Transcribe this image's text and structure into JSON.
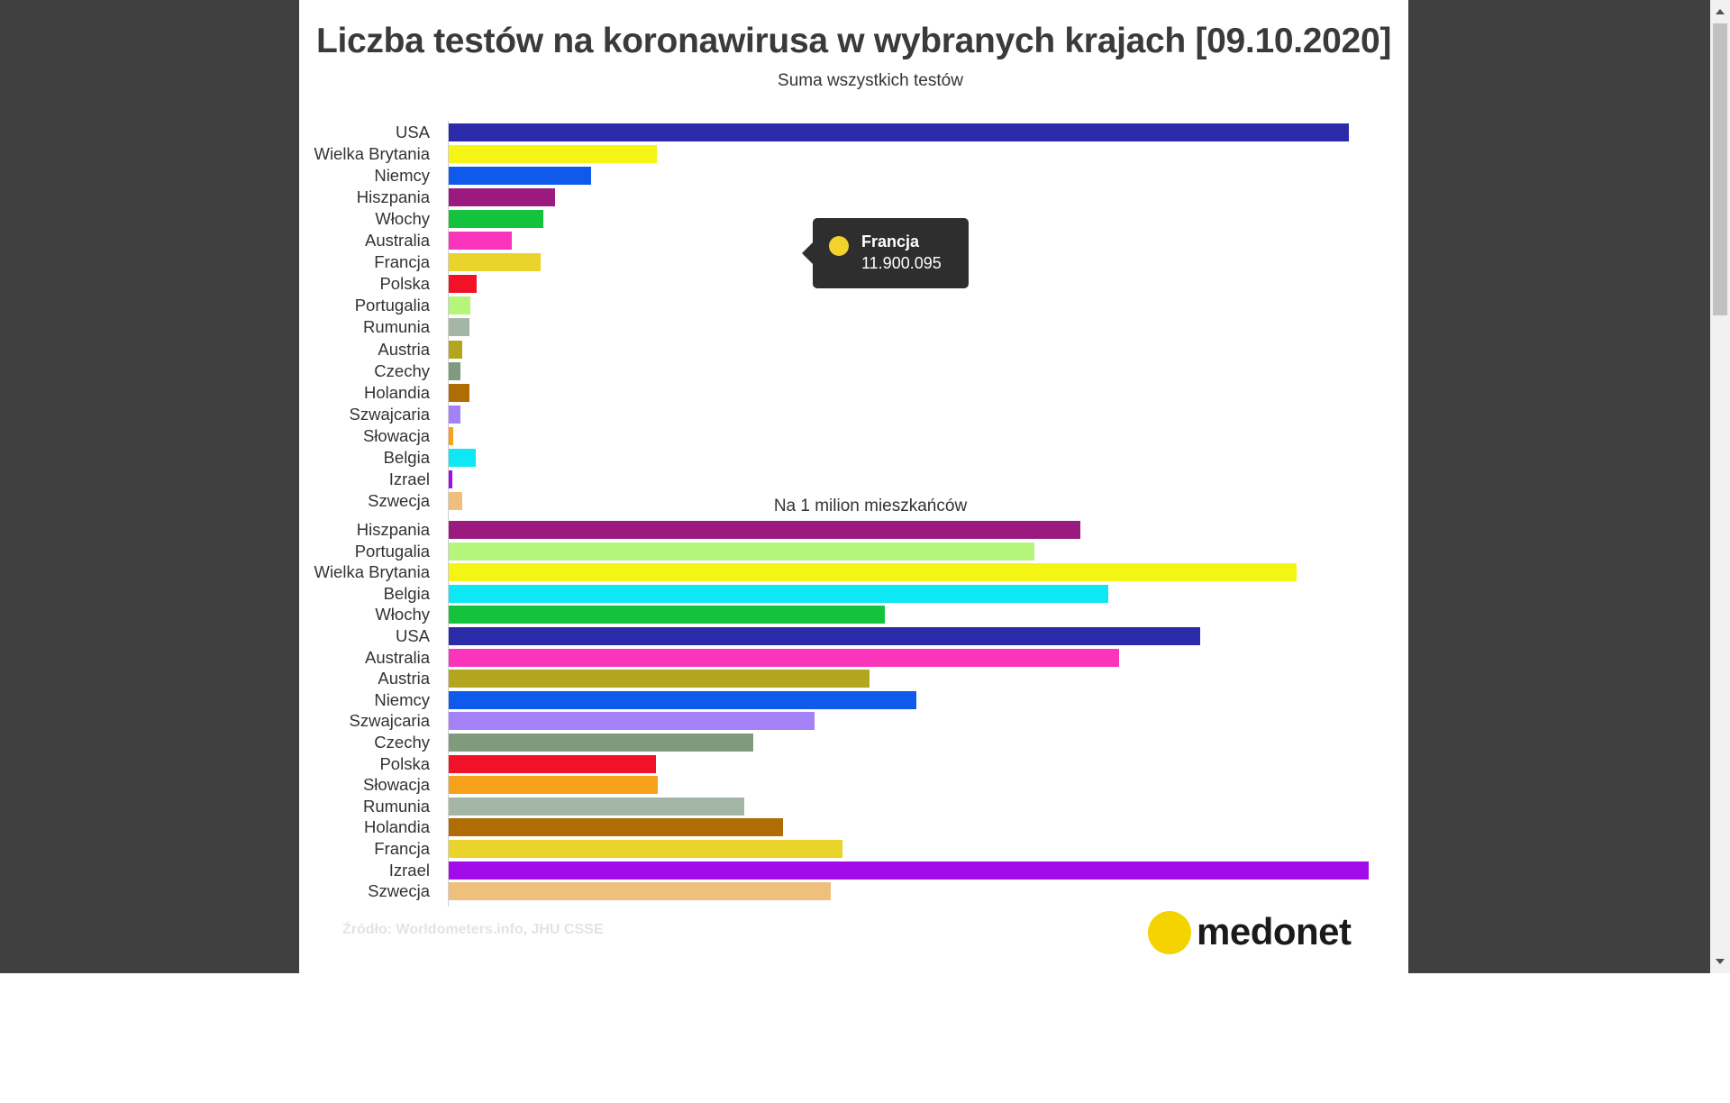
{
  "title": "Liczba testów na koronawirusa w wybranych krajach [09.10.2020]",
  "source": "Źródło: Worldometers.info, JHU CSSE",
  "logo_text": "medonet",
  "tooltip": {
    "country": "Francja",
    "value": "11.900.095",
    "color": "#f2d22b"
  },
  "chart_data": [
    {
      "type": "bar",
      "orientation": "horizontal",
      "title": "Suma wszystkich testów",
      "xlim": [
        0,
        120000000
      ],
      "grid": false,
      "categories": [
        "USA",
        "Wielka Brytania",
        "Niemcy",
        "Hiszpania",
        "Włochy",
        "Australia",
        "Francja",
        "Polska",
        "Portugalia",
        "Rumunia",
        "Austria",
        "Czechy",
        "Holandia",
        "Szwajcaria",
        "Słowacja",
        "Belgia",
        "Izrael",
        "Szwecja"
      ],
      "values": [
        117000000,
        27000000,
        18500000,
        13800000,
        12300000,
        8200000,
        11900095,
        3600000,
        2800000,
        2700000,
        1800000,
        1500000,
        2700000,
        1500000,
        550000,
        3500000,
        450000,
        1800000
      ],
      "colors": [
        "#2b2aa8",
        "#f4f514",
        "#0f5aea",
        "#9a1a7f",
        "#14c23d",
        "#fa34bb",
        "#ead32a",
        "#f21228",
        "#b4f57a",
        "#a3b6a5",
        "#b4a51e",
        "#7f9a7d",
        "#b06c05",
        "#a381f6",
        "#f7a11c",
        "#0ee8f5",
        "#a20cea",
        "#eec07c"
      ]
    },
    {
      "type": "bar",
      "orientation": "horizontal",
      "title": "Na 1 milion mieszkańców",
      "xlim": [
        0,
        500000
      ],
      "grid": false,
      "categories": [
        "Hiszpania",
        "Portugalia",
        "Wielka Brytania",
        "Belgia",
        "Włochy",
        "USA",
        "Australia",
        "Austria",
        "Niemcy",
        "Szwajcaria",
        "Czechy",
        "Polska",
        "Słowacja",
        "Rumunia",
        "Holandia",
        "Francja",
        "Izrael",
        "Szwecja"
      ],
      "values": [
        342000,
        317000,
        459000,
        357000,
        236000,
        407000,
        363000,
        228000,
        253000,
        198000,
        165000,
        112000,
        113000,
        160000,
        181000,
        213000,
        498000,
        207000
      ],
      "colors": [
        "#9a1a7f",
        "#b4f57a",
        "#f4f514",
        "#0ee8f5",
        "#14c23d",
        "#2b2aa8",
        "#fa34bb",
        "#b4a51e",
        "#0f5aea",
        "#a381f6",
        "#7f9a7d",
        "#f21228",
        "#f7a11c",
        "#a3b6a5",
        "#b06c05",
        "#ead32a",
        "#a20cea",
        "#eec07c"
      ]
    }
  ]
}
